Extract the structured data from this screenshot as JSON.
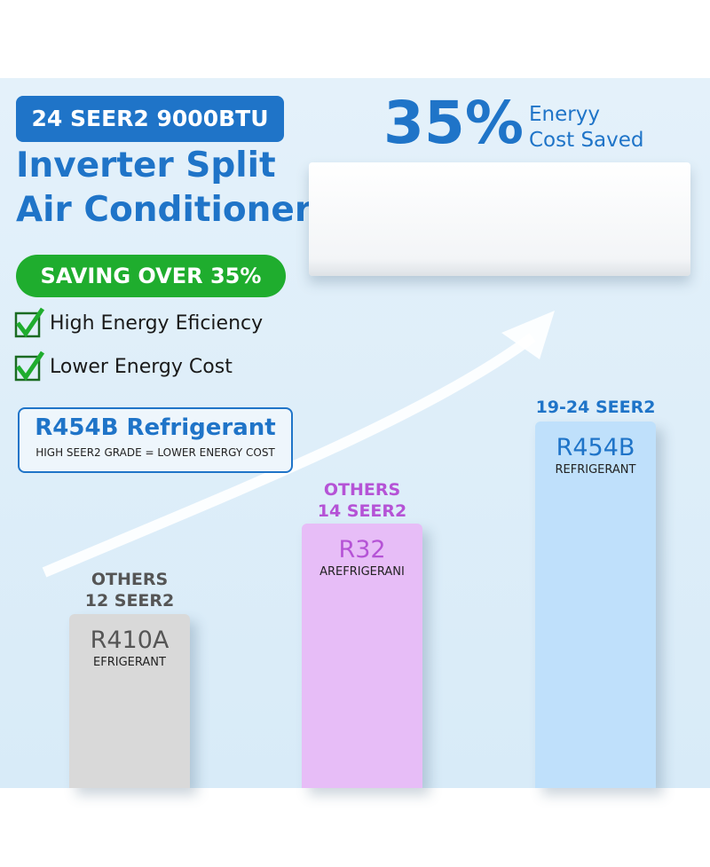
{
  "header": {
    "badge": "24 SEER2 9000BTU",
    "title_line1": "Inverter Split",
    "title_line2": "Air Conditioner"
  },
  "saving": "SAVING OVER 35%",
  "features": [
    "High Energy Eficiency",
    "Lower Energy Cost"
  ],
  "refrigerant_box": {
    "title": "R454B Refrigerant",
    "subtitle": "HIGH SEER2 GRADE = LOWER ENERGY COST"
  },
  "highlight": {
    "percent": "35%",
    "line1": "Eneryy",
    "line2": "Cost Saved"
  },
  "bars": [
    {
      "top_line1": "OTHERS",
      "top_line2": "12 SEER2",
      "name": "R410A",
      "sub": "EFRIGERANT"
    },
    {
      "top_line1": "OTHERS",
      "top_line2": "14 SEER2",
      "name": "R32",
      "sub": "AREFRIGERANI"
    },
    {
      "top_line1": "19-24 SEER2",
      "name": "R454B",
      "sub": "REFRIGERANT"
    }
  ]
}
